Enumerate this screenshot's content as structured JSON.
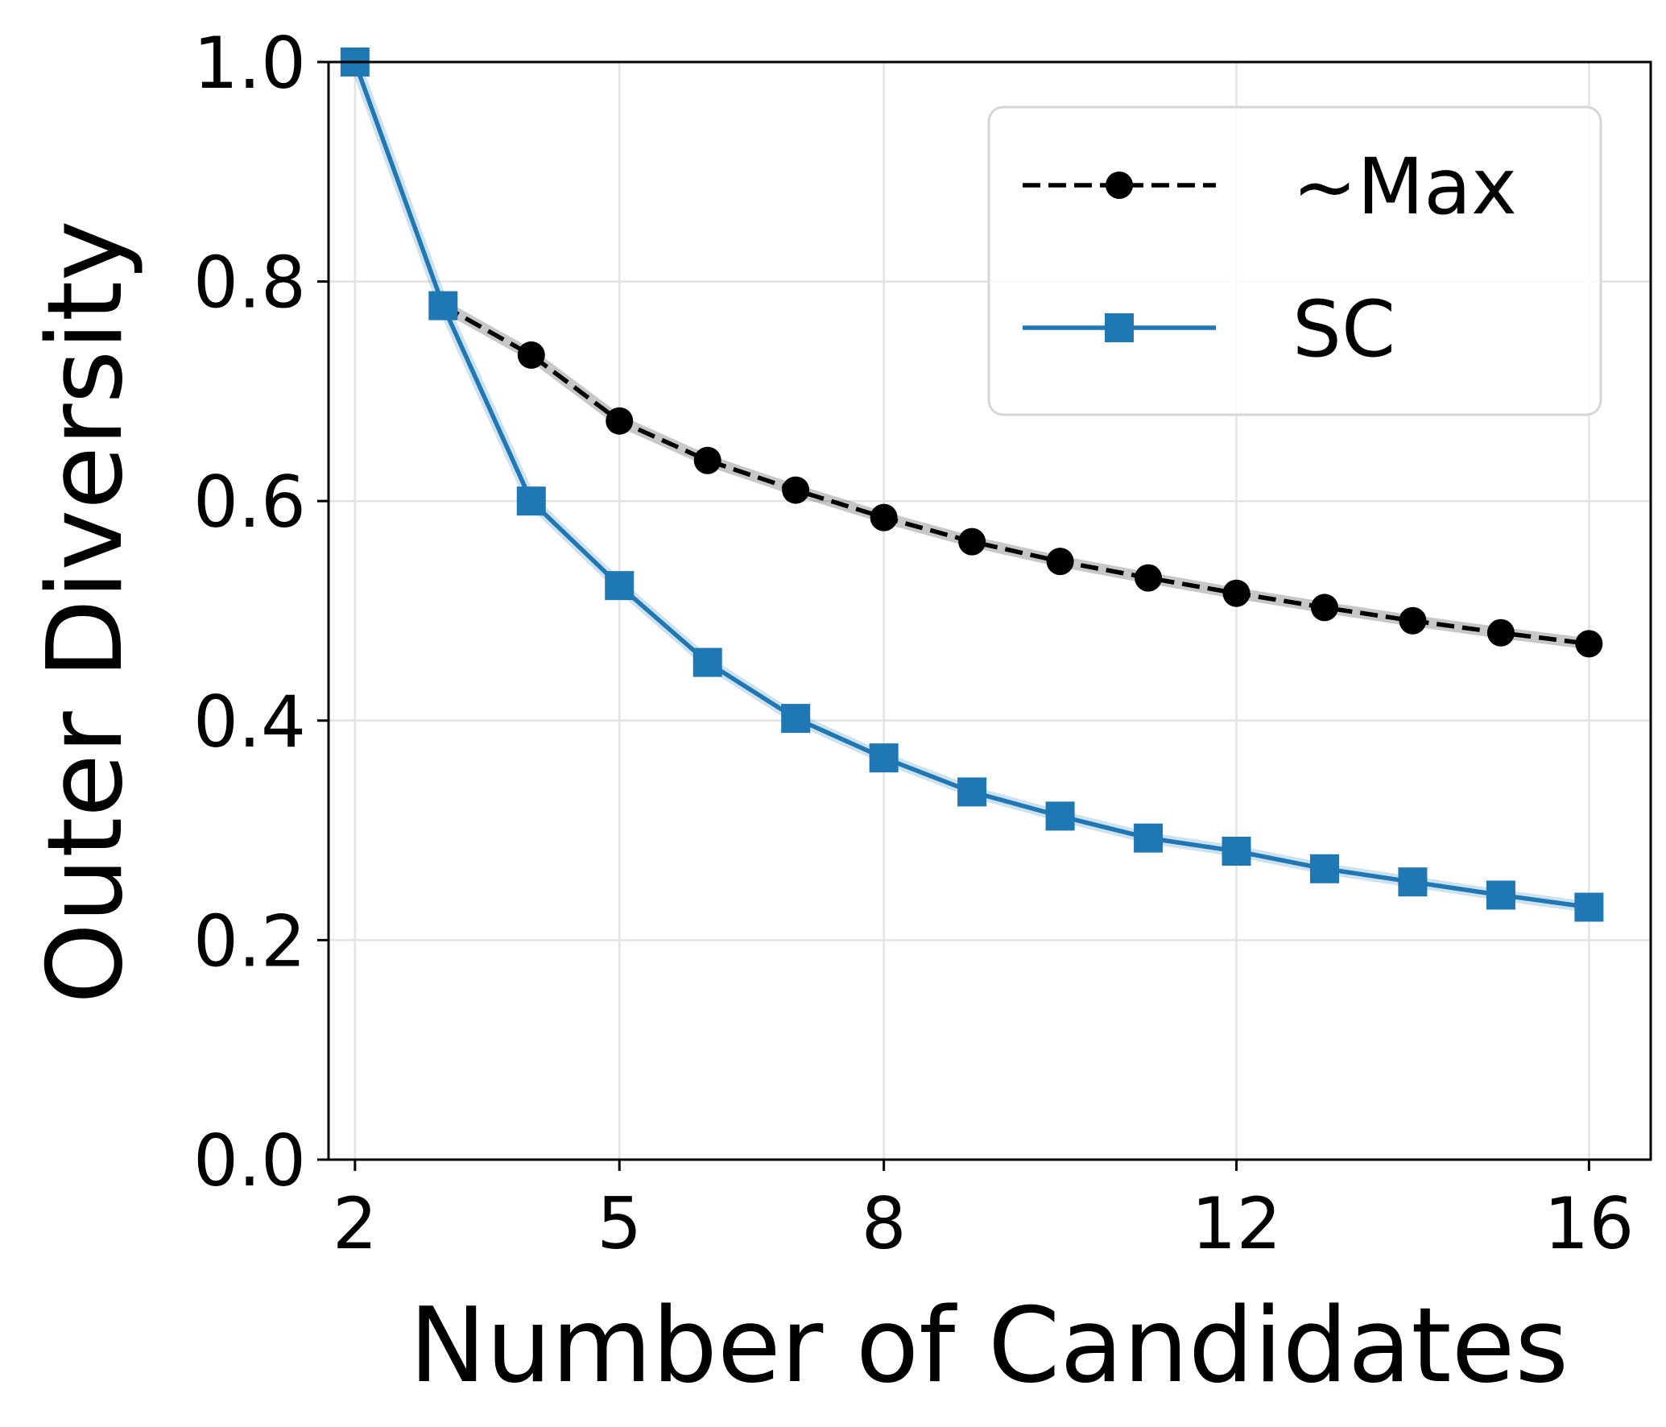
{
  "chart_data": {
    "type": "line",
    "xlabel": "Number of Candidates",
    "ylabel": "Outer Diversity",
    "xlim": [
      1.7,
      16.7
    ],
    "ylim": [
      0.0,
      1.0
    ],
    "xticks": [
      2,
      5,
      8,
      12,
      16
    ],
    "xtick_labels": [
      "2",
      "5",
      "8",
      "12",
      "16"
    ],
    "yticks": [
      0.0,
      0.2,
      0.4,
      0.6,
      0.8,
      1.0
    ],
    "ytick_labels": [
      "0.0",
      "0.2",
      "0.4",
      "0.6",
      "0.8",
      "1.0"
    ],
    "grid": true,
    "legend_position": "top-right",
    "series": [
      {
        "name": "~Max",
        "color": "#000000",
        "line_style": "dashed",
        "marker": "circle",
        "x": [
          3,
          4,
          5,
          6,
          7,
          8,
          9,
          10,
          11,
          12,
          13,
          14,
          15,
          16
        ],
        "values": [
          0.778,
          0.733,
          0.673,
          0.637,
          0.61,
          0.585,
          0.563,
          0.545,
          0.53,
          0.516,
          0.503,
          0.491,
          0.48,
          0.47
        ]
      },
      {
        "name": "SC",
        "color": "#1f77b4",
        "line_style": "solid",
        "marker": "square",
        "x": [
          2,
          3,
          4,
          5,
          6,
          7,
          8,
          9,
          10,
          11,
          12,
          13,
          14,
          15,
          16
        ],
        "values": [
          1.0,
          0.778,
          0.6,
          0.523,
          0.453,
          0.402,
          0.366,
          0.335,
          0.313,
          0.293,
          0.281,
          0.265,
          0.253,
          0.241,
          0.23
        ]
      }
    ]
  }
}
